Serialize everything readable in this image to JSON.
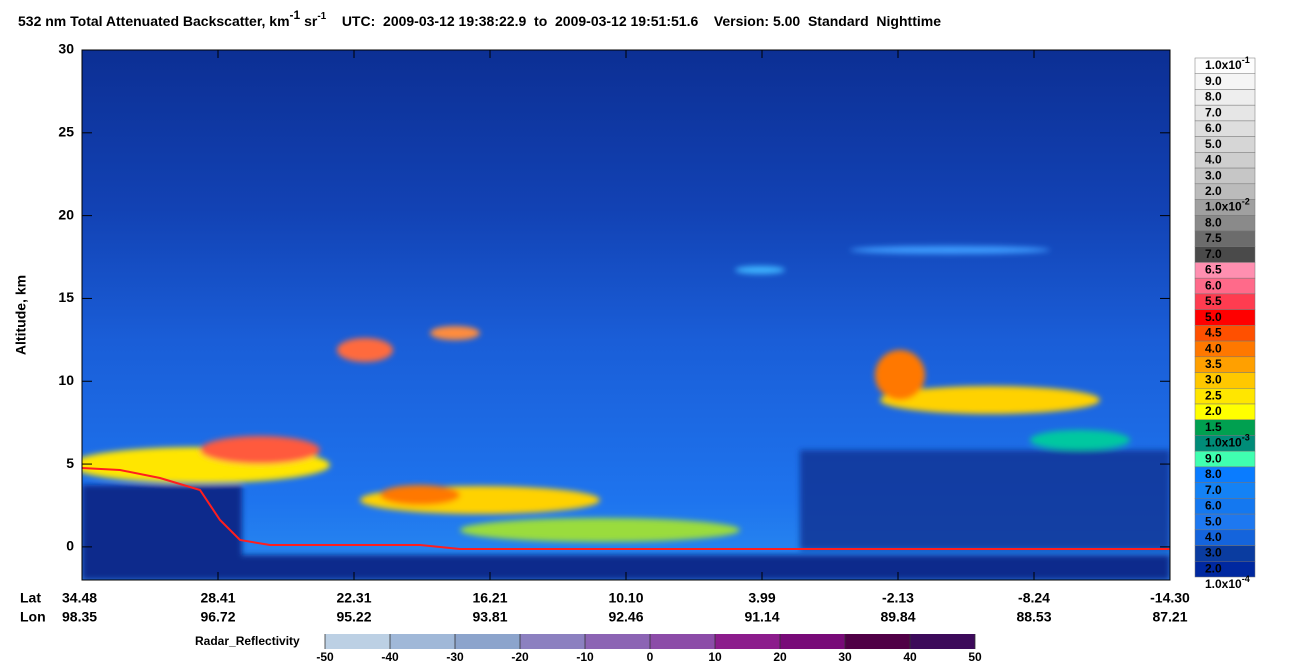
{
  "chart_data": {
    "type": "curtain",
    "title": "532 nm Total Attenuated Backscatter, km",
    "title_exp1": "-1",
    "title_unit2": "sr",
    "title_exp2": "-1",
    "time_range": "UTC:  2009-03-12 19:38:22.9  to  2009-03-12 19:51:51.6",
    "version": "Version: 5.00  Standard  Nighttime",
    "y_label": "Altitude, km",
    "ylim": [
      -2,
      30
    ],
    "yticks": [
      0,
      5,
      10,
      15,
      20,
      25,
      30
    ],
    "lat_label": "Lat",
    "lon_label": "Lon",
    "lat": [
      "34.48",
      "28.41",
      "22.31",
      "16.21",
      "10.10",
      "3.99",
      "-2.13",
      "-8.24",
      "-14.30"
    ],
    "lon": [
      "98.35",
      "96.72",
      "95.22",
      "93.81",
      "92.46",
      "91.14",
      "89.84",
      "88.53",
      "87.21"
    ],
    "colorbar": {
      "labels": [
        {
          "base": "1.0x10",
          "exp": "-1"
        },
        "9.0",
        "8.0",
        "7.0",
        "6.0",
        "5.0",
        "4.0",
        "3.0",
        "2.0",
        {
          "base": "1.0x10",
          "exp": "-2"
        },
        "8.0",
        "7.5",
        "7.0",
        "6.5",
        "6.0",
        "5.5",
        "5.0",
        "4.5",
        "4.0",
        "3.5",
        "3.0",
        "2.5",
        "2.0",
        "1.5",
        {
          "base": "1.0x10",
          "exp": "-3"
        },
        "9.0",
        "8.0",
        "7.0",
        "6.0",
        "5.0",
        "4.0",
        "3.0",
        "2.0",
        {
          "base": "1.0x10",
          "exp": "-4"
        }
      ],
      "colors": [
        "#fdfdfd",
        "#f5f5f5",
        "#eeeeee",
        "#e6e6e6",
        "#dedede",
        "#d6d6d6",
        "#cecece",
        "#c6c6c6",
        "#bbbbbb",
        "#a0a0a0",
        "#8a8a8a",
        "#6c6c6c",
        "#4a4a4a",
        "#ff8fb0",
        "#ff6a8a",
        "#ff3c50",
        "#ff0000",
        "#ff5000",
        "#ff7800",
        "#ffa000",
        "#ffc800",
        "#ffe600",
        "#ffff00",
        "#00a050",
        "#008c78",
        "#40ffb0",
        "#0a7cff",
        "#1482f5",
        "#1478f0",
        "#1e78f0",
        "#1464dc",
        "#0a3ca0",
        "#0028a0"
      ]
    },
    "radar": {
      "label": "Radar_Reflectivity",
      "xlim": [
        -50,
        50
      ],
      "ticks": [
        -50,
        -40,
        -30,
        -20,
        -10,
        0,
        10,
        20,
        30,
        40,
        50
      ],
      "colors": [
        "#bcd0e4",
        "#a0b8d8",
        "#8ca4cc",
        "#8c80c0",
        "#8c64b4",
        "#8c4ca8",
        "#8c1c8c",
        "#780a78",
        "#500046",
        "#3c0a5a"
      ]
    }
  }
}
